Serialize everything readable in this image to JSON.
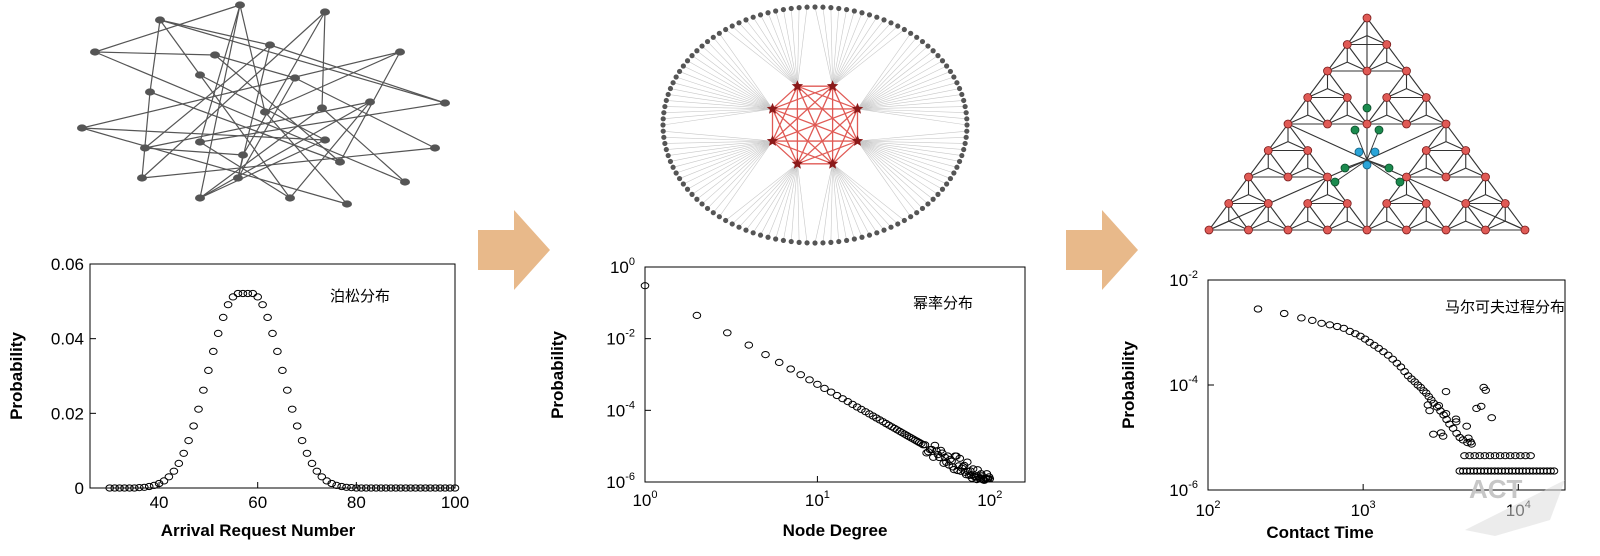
{
  "chart_data": [
    {
      "type": "scatter",
      "title": "",
      "annotation": "泊松分布",
      "xlabel": "Arrival Request Number",
      "ylabel": "Probability",
      "xlim": [
        26,
        100
      ],
      "ylim": [
        0,
        0.06
      ],
      "x_scale": "linear",
      "y_scale": "linear",
      "xticks": [
        "40",
        "60",
        "80",
        "100"
      ],
      "yticks": [
        "0",
        "0.02",
        "0.04",
        "0.06"
      ],
      "mean": 59,
      "sd": 7.7,
      "x": [
        30,
        31,
        32,
        33,
        34,
        35,
        36,
        37,
        38,
        39,
        40,
        41,
        42,
        43,
        44,
        45,
        46,
        47,
        48,
        49,
        50,
        51,
        52,
        53,
        54,
        55,
        56,
        57,
        58,
        59,
        60,
        61,
        62,
        63,
        64,
        65,
        66,
        67,
        68,
        69,
        70,
        71,
        72,
        73,
        74,
        75,
        76,
        77,
        78,
        79,
        80,
        81,
        82,
        83,
        84,
        85,
        86,
        87,
        88,
        89,
        90,
        91,
        92,
        93,
        94,
        95,
        96,
        97,
        98,
        99,
        100
      ],
      "y": [
        0,
        0,
        0,
        0,
        0,
        0,
        0.0001,
        0.0002,
        0.0004,
        0.0007,
        0.0012,
        0.0019,
        0.003,
        0.0045,
        0.0066,
        0.0093,
        0.0127,
        0.0166,
        0.0211,
        0.0262,
        0.0315,
        0.0366,
        0.0414,
        0.0457,
        0.0491,
        0.0512,
        0.0521,
        0.0521,
        0.0521,
        0.0521,
        0.0512,
        0.0491,
        0.0457,
        0.0414,
        0.0366,
        0.0315,
        0.0262,
        0.0211,
        0.0166,
        0.0127,
        0.0093,
        0.0066,
        0.0045,
        0.003,
        0.0019,
        0.0012,
        0.0007,
        0.0004,
        0.0002,
        0.0001,
        0,
        0,
        0,
        0,
        0,
        0,
        0,
        0,
        0,
        0,
        0,
        0,
        0,
        0,
        0,
        0,
        0,
        0,
        0,
        0,
        0
      ],
      "grid": false,
      "legend": "none"
    },
    {
      "type": "scatter",
      "title": "",
      "annotation": "幂率分布",
      "xlabel": "Node Degree",
      "ylabel": "Probability",
      "x_scale": "log",
      "y_scale": "log",
      "xlim": [
        1,
        160
      ],
      "ylim": [
        1e-06,
        1
      ],
      "xticks": [
        {
          "base": "10",
          "exp": "0"
        },
        {
          "base": "10",
          "exp": "1"
        },
        {
          "base": "10",
          "exp": "2"
        }
      ],
      "yticks": [
        {
          "base": "10",
          "exp": "0"
        },
        {
          "base": "10",
          "exp": "-2"
        },
        {
          "base": "10",
          "exp": "-4"
        },
        {
          "base": "10",
          "exp": "-6"
        }
      ],
      "power_law": {
        "coefficient": 0.3,
        "exponent": -2.75,
        "x_min": 1,
        "x_max": 100
      },
      "grid": false,
      "legend": "none"
    },
    {
      "type": "scatter",
      "title": "",
      "annotation": "马尔可夫过程分布",
      "xlabel": "Contact Time",
      "ylabel": "Probability",
      "x_scale": "log",
      "y_scale": "log",
      "xlim": [
        100,
        20000
      ],
      "ylim": [
        1e-06,
        0.01
      ],
      "xticks": [
        {
          "base": "10",
          "exp": "2"
        },
        {
          "base": "10",
          "exp": "3"
        },
        {
          "base": "10",
          "exp": "4"
        }
      ],
      "yticks": [
        {
          "base": "10",
          "exp": "-2"
        },
        {
          "base": "10",
          "exp": "-4"
        },
        {
          "base": "10",
          "exp": "-6"
        }
      ],
      "x": [
        210,
        310,
        400,
        470,
        540,
        610,
        680,
        750,
        820,
        890,
        960,
        1030,
        1100,
        1180,
        1260,
        1350,
        1450,
        1550,
        1650,
        1750,
        1850,
        1950,
        2050,
        2150,
        2250,
        2350,
        2450,
        2550,
        2650,
        2750,
        2850,
        3000,
        3150,
        3300,
        3450,
        3600,
        3800,
        4000,
        4200,
        4400,
        4700,
        5000
      ],
      "y": [
        0.0028,
        0.0023,
        0.0019,
        0.0017,
        0.0015,
        0.0014,
        0.0013,
        0.0012,
        0.00105,
        0.00095,
        0.00085,
        0.00075,
        0.00065,
        0.00057,
        0.0005,
        0.00043,
        0.00037,
        0.00031,
        0.00026,
        0.00022,
        0.00018,
        0.00015,
        0.00013,
        0.000115,
        0.0001,
        9e-05,
        7.8e-05,
        7e-05,
        6e-05,
        5.2e-05,
        4.5e-05,
        3.8e-05,
        3.2e-05,
        2.7e-05,
        2.2e-05,
        1.8e-05,
        1.5e-05,
        1.2e-05,
        1e-05,
        9e-06,
        8e-06,
        7.5e-06
      ],
      "floor_levels": [
        {
          "y": 2.3e-06,
          "x_from": 4200,
          "x_to": 17000
        },
        {
          "y": 4.5e-06,
          "x_from": 4500,
          "x_to": 12000
        }
      ],
      "grid": false,
      "legend": "none"
    }
  ],
  "watermark": "ACT",
  "arrow_color": "#e8b98a",
  "accent_red": "#e05a55",
  "accent_green": "#1b8a4e",
  "accent_blue": "#2aa4d8"
}
